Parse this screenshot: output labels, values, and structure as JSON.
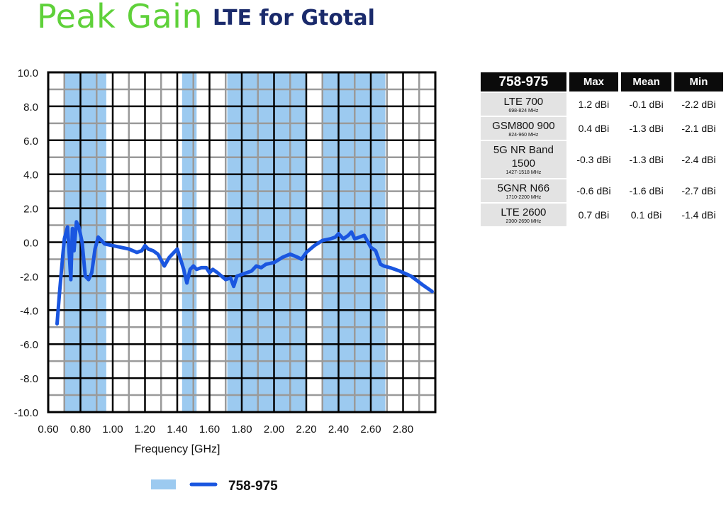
{
  "title": "Peak Gain",
  "subtitle": "LTE for Gtotal",
  "colors": {
    "title": "#5fd13a",
    "subtitle": "#1a2a6b",
    "band_shade": "#9ccaf0",
    "series_line": "#1a56e0",
    "grid": "#000000",
    "grid_minor": "#9a9a9a"
  },
  "chart_data": {
    "type": "line",
    "title": "",
    "xlabel": "Frequency [GHz]",
    "ylabel": "",
    "xlim": [
      0.6,
      3.0
    ],
    "ylim": [
      -10,
      10
    ],
    "x_ticks": [
      "0.60",
      "0.80",
      "1.00",
      "1.20",
      "1.40",
      "1.60",
      "1.80",
      "2.00",
      "2.20",
      "2.40",
      "2.60",
      "2.80"
    ],
    "y_ticks": [
      "10.0",
      "8.0",
      "6.0",
      "4.0",
      "2.0",
      "0.0",
      "-2.0",
      "-4.0",
      "-6.0",
      "-8.0",
      "-10.0"
    ],
    "grid": true,
    "legend": {
      "placement": "bottom",
      "entries": [
        "",
        "758-975"
      ]
    },
    "bands": [
      {
        "from": 0.7,
        "to": 0.96
      },
      {
        "from": 1.43,
        "to": 1.52
      },
      {
        "from": 1.71,
        "to": 2.2
      },
      {
        "from": 2.3,
        "to": 2.69
      }
    ],
    "series": [
      {
        "name": "758-975",
        "x": [
          0.655,
          0.67,
          0.69,
          0.7,
          0.72,
          0.74,
          0.75,
          0.76,
          0.775,
          0.79,
          0.81,
          0.83,
          0.85,
          0.87,
          0.89,
          0.91,
          0.93,
          0.95,
          1.0,
          1.05,
          1.1,
          1.15,
          1.18,
          1.2,
          1.22,
          1.25,
          1.28,
          1.32,
          1.35,
          1.38,
          1.4,
          1.42,
          1.44,
          1.46,
          1.48,
          1.5,
          1.52,
          1.55,
          1.58,
          1.6,
          1.62,
          1.65,
          1.7,
          1.73,
          1.75,
          1.77,
          1.8,
          1.83,
          1.86,
          1.89,
          1.92,
          1.95,
          2.0,
          2.05,
          2.1,
          2.15,
          2.17,
          2.2,
          2.25,
          2.3,
          2.35,
          2.38,
          2.4,
          2.43,
          2.46,
          2.48,
          2.5,
          2.53,
          2.56,
          2.6,
          2.63,
          2.66,
          2.68,
          2.72,
          2.78,
          2.85,
          2.92,
          2.98
        ],
        "values": [
          -4.8,
          -3.0,
          -0.8,
          0.2,
          0.9,
          -2.2,
          0.8,
          -0.5,
          1.2,
          0.9,
          0.0,
          -2.0,
          -2.2,
          -1.8,
          -0.4,
          0.3,
          0.1,
          -0.1,
          -0.2,
          -0.3,
          -0.4,
          -0.6,
          -0.5,
          -0.2,
          -0.4,
          -0.5,
          -0.7,
          -1.4,
          -0.9,
          -0.6,
          -0.4,
          -1.0,
          -1.6,
          -2.4,
          -1.6,
          -1.4,
          -1.6,
          -1.5,
          -1.5,
          -1.8,
          -1.6,
          -1.8,
          -2.2,
          -2.1,
          -2.6,
          -2.0,
          -1.9,
          -1.8,
          -1.7,
          -1.4,
          -1.5,
          -1.3,
          -1.2,
          -0.9,
          -0.7,
          -0.9,
          -1.0,
          -0.6,
          -0.2,
          0.1,
          0.2,
          0.3,
          0.5,
          0.2,
          0.4,
          0.6,
          0.2,
          0.3,
          0.4,
          -0.3,
          -0.5,
          -1.3,
          -1.4,
          -1.5,
          -1.7,
          -2.0,
          -2.5,
          -2.9
        ]
      }
    ]
  },
  "table": {
    "header": [
      "758-975",
      "Max",
      "Mean",
      "Min"
    ],
    "rows": [
      {
        "name": "LTE 700",
        "range": "698-824 MHz",
        "max": "1.2 dBi",
        "mean": "-0.1 dBi",
        "min": "-2.2 dBi"
      },
      {
        "name": "GSM800 900",
        "range": "824-960 MHz",
        "max": "0.4 dBi",
        "mean": "-1.3 dBi",
        "min": "-2.1 dBi"
      },
      {
        "name": "5G NR Band 1500",
        "range": "1427-1518 MHz",
        "max": "-0.3 dBi",
        "mean": "-1.3 dBi",
        "min": "-2.4 dBi"
      },
      {
        "name": "5GNR N66",
        "range": "1710-2200 MHz",
        "max": "-0.6 dBi",
        "mean": "-1.6 dBi",
        "min": "-2.7 dBi"
      },
      {
        "name": "LTE 2600",
        "range": "2300-2690 MHz",
        "max": "0.7 dBi",
        "mean": "0.1 dBi",
        "min": "-1.4 dBi"
      }
    ]
  }
}
